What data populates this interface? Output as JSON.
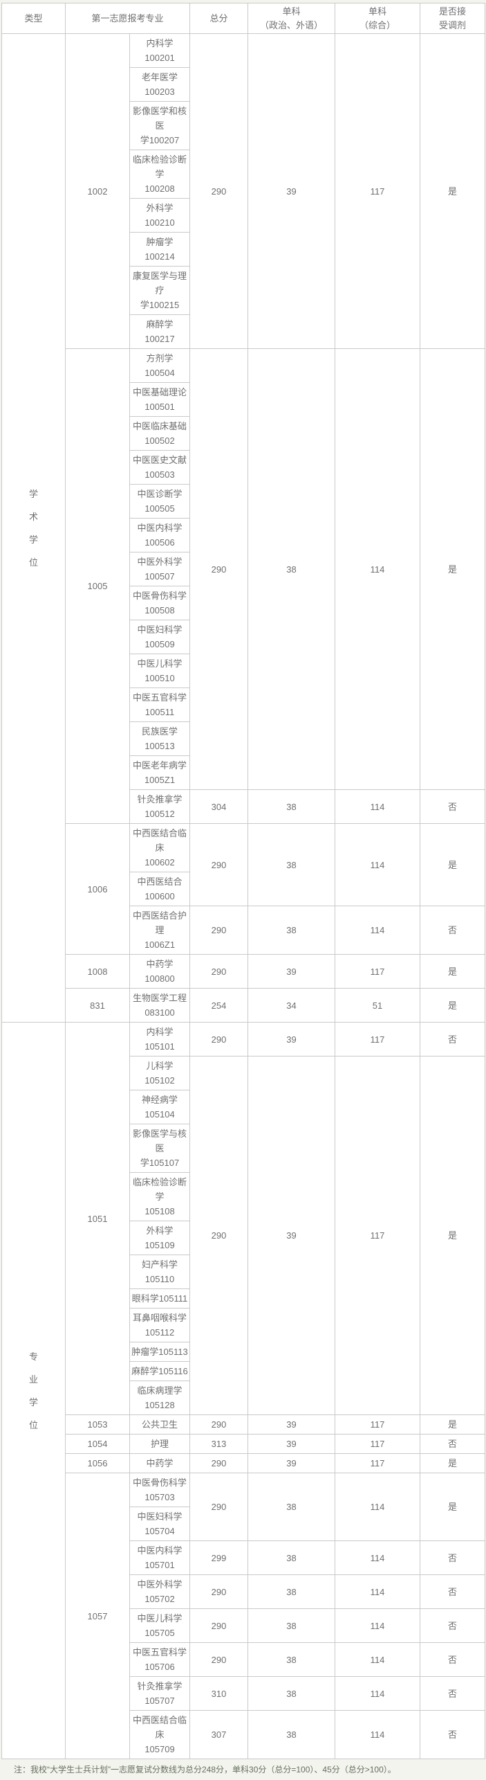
{
  "colors": {
    "border": "#c9c9c9",
    "cell_text": "#6f6f6f",
    "cell_background": "#ffffff",
    "page_background": "#f3f4ee",
    "note_text": "#666f5e"
  },
  "note": "注：我校“大学生士兵计划”一志愿复试分数线为总分248分，单科30分（总分=100）、45分（总分>100）。",
  "table": {
    "column_names": [
      "type",
      "major-code",
      "specialty",
      "total-score",
      "politics-foreign-score",
      "comprehensive-score",
      "adjustment"
    ],
    "header": {
      "type": "类型",
      "major": "第一志愿报考专业",
      "total": "总分",
      "politics_foreign": "单科\n（政治、外语）",
      "comprehensive": "单科\n（综合）",
      "adjustment": "是否接\n受调剂"
    },
    "rows": [
      {
        "cells": [
          {
            "t": "学\n术\n学\n位",
            "rs": 27,
            "v": 1
          },
          {
            "t": "1002",
            "rs": 8
          },
          {
            "t": "内科学100201"
          },
          {
            "t": "290",
            "rs": 8
          },
          {
            "t": "39",
            "rs": 8
          },
          {
            "t": "117",
            "rs": 8
          },
          {
            "t": "是",
            "rs": 8
          }
        ]
      },
      {
        "cells": [
          {
            "t": "老年医学\n100203"
          }
        ]
      },
      {
        "cells": [
          {
            "t": "影像医学和核医\n学100207"
          }
        ]
      },
      {
        "cells": [
          {
            "t": "临床检验诊断学\n100208"
          }
        ]
      },
      {
        "cells": [
          {
            "t": "外科学100210"
          }
        ]
      },
      {
        "cells": [
          {
            "t": "肿瘤学100214"
          }
        ]
      },
      {
        "cells": [
          {
            "t": "康复医学与理疗\n学100215"
          }
        ]
      },
      {
        "cells": [
          {
            "t": "麻醉学100217"
          }
        ]
      },
      {
        "cells": [
          {
            "t": "1005",
            "rs": 14
          },
          {
            "t": "方剂学100504"
          },
          {
            "t": "290",
            "rs": 13
          },
          {
            "t": "38",
            "rs": 13
          },
          {
            "t": "114",
            "rs": 13
          },
          {
            "t": "是",
            "rs": 13
          }
        ]
      },
      {
        "cells": [
          {
            "t": "中医基础理论\n100501"
          }
        ]
      },
      {
        "cells": [
          {
            "t": "中医临床基础\n100502"
          }
        ]
      },
      {
        "cells": [
          {
            "t": "中医医史文献\n100503"
          }
        ]
      },
      {
        "cells": [
          {
            "t": "中医诊断学\n100505"
          }
        ]
      },
      {
        "cells": [
          {
            "t": "中医内科学\n100506"
          }
        ]
      },
      {
        "cells": [
          {
            "t": "中医外科学\n100507"
          }
        ]
      },
      {
        "cells": [
          {
            "t": "中医骨伤科学\n100508"
          }
        ]
      },
      {
        "cells": [
          {
            "t": "中医妇科学\n100509"
          }
        ]
      },
      {
        "cells": [
          {
            "t": "中医儿科学\n100510"
          }
        ]
      },
      {
        "cells": [
          {
            "t": "中医五官科学\n100511"
          }
        ]
      },
      {
        "cells": [
          {
            "t": "民族医学\n100513"
          }
        ]
      },
      {
        "cells": [
          {
            "t": "中医老年病学\n1005Z1"
          }
        ]
      },
      {
        "cells": [
          {
            "t": "针灸推拿学\n100512"
          },
          {
            "t": "304"
          },
          {
            "t": "38"
          },
          {
            "t": "114"
          },
          {
            "t": "否"
          }
        ]
      },
      {
        "cells": [
          {
            "t": "1006",
            "rs": 3
          },
          {
            "t": "中西医结合临床\n100602"
          },
          {
            "t": "290",
            "rs": 2
          },
          {
            "t": "38",
            "rs": 2
          },
          {
            "t": "114",
            "rs": 2
          },
          {
            "t": "是",
            "rs": 2
          }
        ]
      },
      {
        "cells": [
          {
            "t": "中西医结合\n100600"
          }
        ]
      },
      {
        "cells": [
          {
            "t": "中西医结合护理\n1006Z1"
          },
          {
            "t": "290"
          },
          {
            "t": "38"
          },
          {
            "t": "114"
          },
          {
            "t": "否"
          }
        ]
      },
      {
        "cells": [
          {
            "t": "1008"
          },
          {
            "t": "中药学100800"
          },
          {
            "t": "290"
          },
          {
            "t": "39"
          },
          {
            "t": "117"
          },
          {
            "t": "是"
          }
        ]
      },
      {
        "cells": [
          {
            "t": "831"
          },
          {
            "t": "生物医学工程\n083100"
          },
          {
            "t": "254"
          },
          {
            "t": "34"
          },
          {
            "t": "51"
          },
          {
            "t": "是"
          }
        ]
      },
      {
        "cells": [
          {
            "t": "专\n业\n学\n位",
            "rs": 23,
            "v": 1
          },
          {
            "t": "1051",
            "rs": 12
          },
          {
            "t": "内科学105101"
          },
          {
            "t": "290"
          },
          {
            "t": "39"
          },
          {
            "t": "117"
          },
          {
            "t": "否"
          }
        ]
      },
      {
        "cells": [
          {
            "t": "儿科学105102"
          },
          {
            "t": "290",
            "rs": 11
          },
          {
            "t": "39",
            "rs": 11
          },
          {
            "t": "117",
            "rs": 11
          },
          {
            "t": "是",
            "rs": 11
          }
        ]
      },
      {
        "cells": [
          {
            "t": "神经病学\n105104"
          }
        ]
      },
      {
        "cells": [
          {
            "t": "影像医学与核医\n学105107"
          }
        ]
      },
      {
        "cells": [
          {
            "t": "临床检验诊断学\n105108"
          }
        ]
      },
      {
        "cells": [
          {
            "t": "外科学105109"
          }
        ]
      },
      {
        "cells": [
          {
            "t": "妇产科学\n105110"
          }
        ]
      },
      {
        "cells": [
          {
            "t": "眼科学105111"
          }
        ]
      },
      {
        "cells": [
          {
            "t": "耳鼻咽喉科学\n105112"
          }
        ]
      },
      {
        "cells": [
          {
            "t": "肿瘤学105113"
          }
        ]
      },
      {
        "cells": [
          {
            "t": "麻醉学105116"
          }
        ]
      },
      {
        "cells": [
          {
            "t": "临床病理学\n105128"
          }
        ]
      },
      {
        "cells": [
          {
            "t": "1053"
          },
          {
            "t": "公共卫生"
          },
          {
            "t": "290"
          },
          {
            "t": "39"
          },
          {
            "t": "117"
          },
          {
            "t": "是"
          }
        ]
      },
      {
        "cells": [
          {
            "t": "1054"
          },
          {
            "t": "护理"
          },
          {
            "t": "313"
          },
          {
            "t": "39"
          },
          {
            "t": "117"
          },
          {
            "t": "否"
          }
        ]
      },
      {
        "cells": [
          {
            "t": "1056"
          },
          {
            "t": "中药学"
          },
          {
            "t": "290"
          },
          {
            "t": "39"
          },
          {
            "t": "117"
          },
          {
            "t": "是"
          }
        ]
      },
      {
        "cells": [
          {
            "t": "1057",
            "rs": 8
          },
          {
            "t": "中医骨伤科学\n105703"
          },
          {
            "t": "290",
            "rs": 2
          },
          {
            "t": "38",
            "rs": 2
          },
          {
            "t": "114",
            "rs": 2
          },
          {
            "t": "是",
            "rs": 2
          }
        ]
      },
      {
        "cells": [
          {
            "t": "中医妇科学\n105704"
          }
        ]
      },
      {
        "cells": [
          {
            "t": "中医内科学\n105701"
          },
          {
            "t": "299"
          },
          {
            "t": "38"
          },
          {
            "t": "114"
          },
          {
            "t": "否"
          }
        ]
      },
      {
        "cells": [
          {
            "t": "中医外科学\n105702"
          },
          {
            "t": "290"
          },
          {
            "t": "38"
          },
          {
            "t": "114"
          },
          {
            "t": "否"
          }
        ]
      },
      {
        "cells": [
          {
            "t": "中医儿科学\n105705"
          },
          {
            "t": "290"
          },
          {
            "t": "38"
          },
          {
            "t": "114"
          },
          {
            "t": "否"
          }
        ]
      },
      {
        "cells": [
          {
            "t": "中医五官科学\n105706"
          },
          {
            "t": "290"
          },
          {
            "t": "38"
          },
          {
            "t": "114"
          },
          {
            "t": "否"
          }
        ]
      },
      {
        "cells": [
          {
            "t": "针灸推拿学\n105707"
          },
          {
            "t": "310"
          },
          {
            "t": "38"
          },
          {
            "t": "114"
          },
          {
            "t": "否"
          }
        ]
      },
      {
        "cells": [
          {
            "t": "中西医结合临床\n105709"
          },
          {
            "t": "307"
          },
          {
            "t": "38"
          },
          {
            "t": "114"
          },
          {
            "t": "否"
          }
        ]
      }
    ]
  }
}
